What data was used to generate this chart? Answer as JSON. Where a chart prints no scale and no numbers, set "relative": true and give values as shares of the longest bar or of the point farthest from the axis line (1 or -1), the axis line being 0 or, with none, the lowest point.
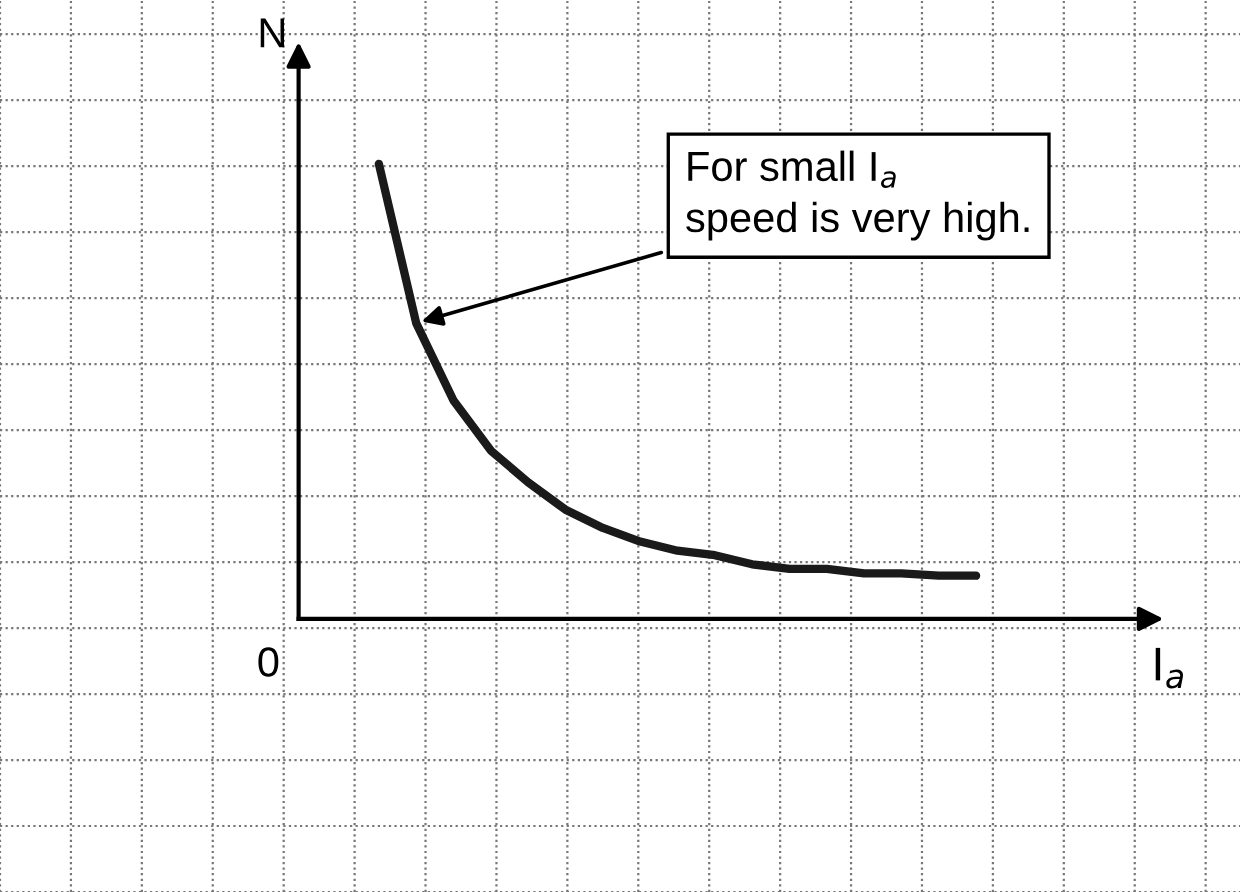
{
  "chart_data": {
    "type": "line",
    "relative": true,
    "xlabel": "I$_{a}$",
    "ylabel": "N",
    "categories": [
      null,
      null,
      null,
      null,
      null,
      null,
      null,
      null,
      null,
      null,
      null,
      null,
      null,
      null,
      null,
      null,
      null
    ],
    "series": [
      {
        "color": "#1a1a1a",
        "values": [
          1.0,
          0.65,
          0.48,
          0.37,
          0.3,
          0.24,
          0.2,
          0.17,
          0.15,
          0.14,
          0.12,
          0.11,
          0.11,
          0.1,
          0.1,
          0.095,
          0.095
        ]
      }
    ],
    "annotations": [
      "For small I$_{a}$\nspeed is very high.",
      "0"
    ],
    "grid": true,
    "marker": "none",
    "line_style": "solid"
  }
}
